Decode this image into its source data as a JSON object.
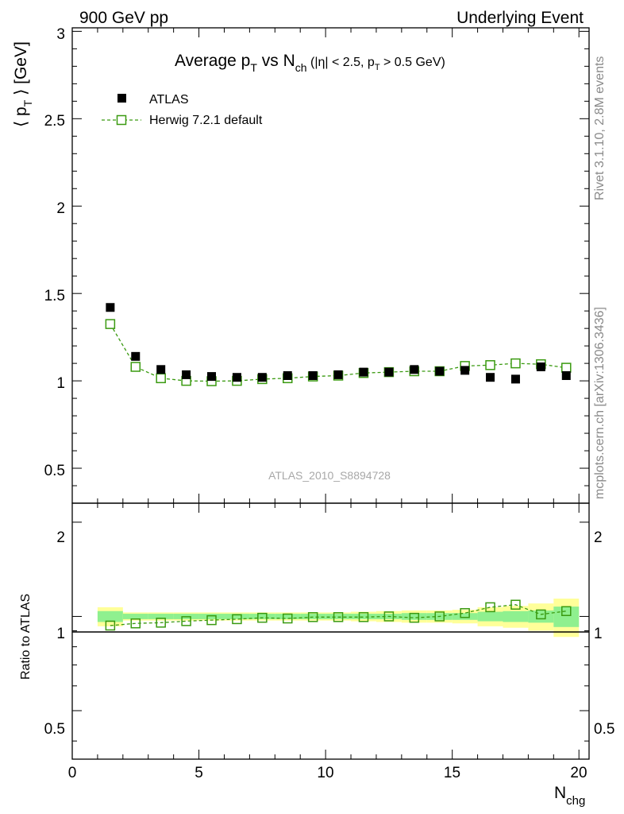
{
  "header": {
    "left": "900 GeV pp",
    "right": "Underlying Event"
  },
  "side_labels": {
    "top": "Rivet 3.1.10,  2.8M events",
    "bottom": "mcplots.cern.ch [arXiv:1306.3436]"
  },
  "main_panel": {
    "title_parts": {
      "a": "Average p",
      "a_sub": "T",
      "b": " vs N",
      "b_sub": "ch",
      "c": " (|η| < 2.5, p",
      "c_sub": "T",
      "d": " > 0.5 GeV)"
    },
    "ylabel": "⟨ p",
    "ylabel_sub": "T",
    "ylabel_tail": " ⟩ [GeV]",
    "watermark": "ATLAS_2010_S8894728",
    "legend": [
      {
        "label": "ATLAS",
        "marker": "filled-square",
        "color": "#000000"
      },
      {
        "label": "Herwig 7.2.1 default",
        "marker": "open-square-dashed",
        "color": "#3a9a10"
      }
    ],
    "yticks": [
      "0.5",
      "1",
      "1.5",
      "2",
      "2.5",
      "3"
    ]
  },
  "ratio_panel": {
    "ylabel": "Ratio to ATLAS",
    "yticks": [
      "0.5",
      "1",
      "2"
    ]
  },
  "xaxis": {
    "label": "N",
    "label_sub": "chg",
    "ticks": [
      "0",
      "5",
      "10",
      "15",
      "20"
    ]
  },
  "colors": {
    "data": "#000000",
    "mc": "#3a9a10",
    "band_inner": "#8ff08f",
    "band_outer": "#ffff99"
  },
  "chart_data": [
    {
      "type": "scatter",
      "title": "Average pT vs Nch (|η| < 2.5, pT > 0.5 GeV)",
      "xlabel": "Nchg",
      "ylabel": "⟨ pT ⟩ [GeV]",
      "xlim": [
        0,
        20.4
      ],
      "ylim": [
        0.3,
        3.02
      ],
      "grid": false,
      "legend_position": "top-left",
      "series": [
        {
          "name": "ATLAS",
          "x": [
            1.5,
            2.5,
            3.5,
            4.5,
            5.5,
            6.5,
            7.5,
            8.5,
            9.5,
            10.5,
            11.5,
            12.5,
            13.5,
            14.5,
            15.5,
            16.5,
            17.5,
            18.5,
            19.5
          ],
          "y": [
            1.42,
            1.14,
            1.065,
            1.035,
            1.025,
            1.02,
            1.02,
            1.03,
            1.03,
            1.035,
            1.05,
            1.05,
            1.065,
            1.055,
            1.06,
            1.02,
            1.01,
            1.08,
            1.03
          ]
        },
        {
          "name": "Herwig 7.2.1 default",
          "x": [
            1.5,
            2.5,
            3.5,
            4.5,
            5.5,
            6.5,
            7.5,
            8.5,
            9.5,
            10.5,
            11.5,
            12.5,
            13.5,
            14.5,
            15.5,
            16.5,
            17.5,
            18.5,
            19.5
          ],
          "y": [
            1.325,
            1.08,
            1.015,
            1.0,
            0.998,
            1.0,
            1.01,
            1.015,
            1.025,
            1.03,
            1.045,
            1.05,
            1.055,
            1.055,
            1.085,
            1.09,
            1.1,
            1.095,
            1.075
          ]
        }
      ]
    },
    {
      "type": "scatter",
      "ylabel": "Ratio to ATLAS",
      "xlabel": "Nchg",
      "xlim": [
        0,
        20.4
      ],
      "ylim": [
        0.35,
        2.3
      ],
      "log_y": true,
      "series": [
        {
          "name": "Herwig 7.2.1 default",
          "x": [
            1.5,
            2.5,
            3.5,
            4.5,
            5.5,
            6.5,
            7.5,
            8.5,
            9.5,
            10.5,
            11.5,
            12.5,
            13.5,
            14.5,
            15.5,
            16.5,
            17.5,
            18.5,
            19.5
          ],
          "y": [
            0.935,
            0.95,
            0.955,
            0.966,
            0.973,
            0.98,
            0.99,
            0.985,
            0.995,
            0.995,
            0.995,
            1.0,
            0.99,
            1.0,
            1.025,
            1.07,
            1.09,
            1.015,
            1.04
          ]
        }
      ],
      "uncertainty_band": {
        "x_edges": [
          1,
          2,
          3,
          4,
          5,
          6,
          7,
          8,
          9,
          10,
          11,
          12,
          13,
          14,
          15,
          16,
          17,
          18,
          19,
          20
        ],
        "inner_half_width": [
          0.04,
          0.02,
          0.02,
          0.02,
          0.02,
          0.02,
          0.02,
          0.02,
          0.02,
          0.02,
          0.02,
          0.02,
          0.025,
          0.025,
          0.025,
          0.035,
          0.04,
          0.045,
          0.075
        ],
        "outer_half_width": [
          0.07,
          0.03,
          0.03,
          0.03,
          0.03,
          0.03,
          0.03,
          0.03,
          0.03,
          0.03,
          0.035,
          0.04,
          0.045,
          0.045,
          0.05,
          0.07,
          0.08,
          0.1,
          0.14
        ]
      }
    }
  ]
}
